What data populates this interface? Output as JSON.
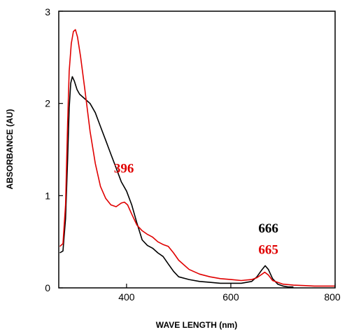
{
  "chart_data": {
    "type": "line",
    "title": "",
    "xlabel": "WAVE LENGTH (nm)",
    "ylabel": "ABSORBANCE (AU)",
    "xlim": [
      270,
      800
    ],
    "ylim": [
      0,
      3
    ],
    "x_ticks": [
      400,
      600,
      800
    ],
    "y_ticks": [
      0,
      1,
      2,
      3
    ],
    "grid": false,
    "legend": "none",
    "series": [
      {
        "color": "#000000",
        "points": [
          [
            272,
            0.38
          ],
          [
            278,
            0.4
          ],
          [
            283,
            0.75
          ],
          [
            287,
            1.4
          ],
          [
            290,
            1.95
          ],
          [
            293,
            2.22
          ],
          [
            296,
            2.29
          ],
          [
            300,
            2.24
          ],
          [
            305,
            2.15
          ],
          [
            310,
            2.1
          ],
          [
            320,
            2.05
          ],
          [
            330,
            2.0
          ],
          [
            340,
            1.9
          ],
          [
            350,
            1.75
          ],
          [
            360,
            1.6
          ],
          [
            370,
            1.45
          ],
          [
            380,
            1.3
          ],
          [
            390,
            1.15
          ],
          [
            400,
            1.05
          ],
          [
            410,
            0.9
          ],
          [
            420,
            0.7
          ],
          [
            430,
            0.52
          ],
          [
            440,
            0.46
          ],
          [
            450,
            0.43
          ],
          [
            460,
            0.38
          ],
          [
            470,
            0.34
          ],
          [
            480,
            0.26
          ],
          [
            490,
            0.18
          ],
          [
            500,
            0.12
          ],
          [
            520,
            0.09
          ],
          [
            540,
            0.07
          ],
          [
            560,
            0.06
          ],
          [
            580,
            0.05
          ],
          [
            600,
            0.05
          ],
          [
            620,
            0.05
          ],
          [
            640,
            0.07
          ],
          [
            650,
            0.12
          ],
          [
            660,
            0.2
          ],
          [
            666,
            0.24
          ],
          [
            672,
            0.2
          ],
          [
            680,
            0.1
          ],
          [
            690,
            0.04
          ],
          [
            700,
            0.02
          ],
          [
            710,
            0.01
          ],
          [
            720,
            0.01
          ]
        ]
      },
      {
        "color": "#e00000",
        "points": [
          [
            272,
            0.45
          ],
          [
            278,
            0.48
          ],
          [
            283,
            0.9
          ],
          [
            287,
            1.8
          ],
          [
            290,
            2.35
          ],
          [
            294,
            2.65
          ],
          [
            298,
            2.78
          ],
          [
            302,
            2.8
          ],
          [
            306,
            2.72
          ],
          [
            312,
            2.5
          ],
          [
            320,
            2.15
          ],
          [
            330,
            1.7
          ],
          [
            340,
            1.35
          ],
          [
            350,
            1.1
          ],
          [
            360,
            0.97
          ],
          [
            370,
            0.9
          ],
          [
            380,
            0.88
          ],
          [
            390,
            0.92
          ],
          [
            396,
            0.93
          ],
          [
            402,
            0.9
          ],
          [
            410,
            0.8
          ],
          [
            420,
            0.68
          ],
          [
            430,
            0.62
          ],
          [
            440,
            0.58
          ],
          [
            450,
            0.55
          ],
          [
            460,
            0.5
          ],
          [
            470,
            0.47
          ],
          [
            480,
            0.45
          ],
          [
            490,
            0.38
          ],
          [
            500,
            0.3
          ],
          [
            520,
            0.2
          ],
          [
            540,
            0.15
          ],
          [
            560,
            0.12
          ],
          [
            580,
            0.1
          ],
          [
            600,
            0.09
          ],
          [
            620,
            0.08
          ],
          [
            640,
            0.09
          ],
          [
            650,
            0.11
          ],
          [
            660,
            0.15
          ],
          [
            665,
            0.17
          ],
          [
            672,
            0.14
          ],
          [
            680,
            0.08
          ],
          [
            700,
            0.04
          ],
          [
            720,
            0.03
          ],
          [
            740,
            0.025
          ],
          [
            760,
            0.02
          ],
          [
            780,
            0.02
          ],
          [
            800,
            0.02
          ]
        ]
      }
    ],
    "annotations": [
      {
        "text": "396",
        "color": "#e00000",
        "x": 395,
        "y": 1.25
      },
      {
        "text": "666",
        "color": "#000000",
        "x": 672,
        "y": 0.6
      },
      {
        "text": "665",
        "color": "#e00000",
        "x": 672,
        "y": 0.37
      }
    ]
  }
}
